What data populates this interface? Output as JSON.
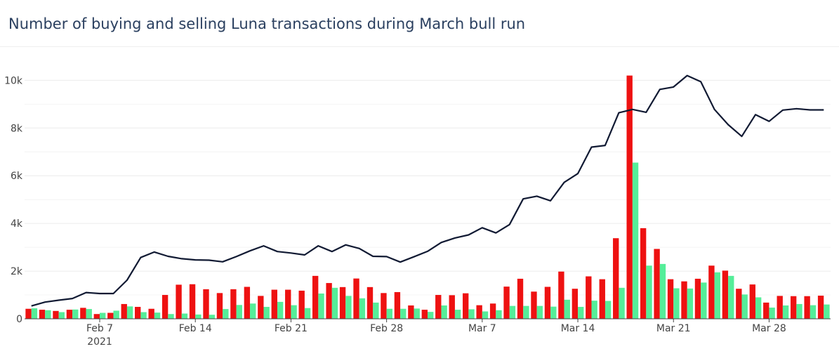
{
  "header": {
    "title": "Number of buying and selling Luna transactions during March bull run"
  },
  "chart_data": {
    "type": "bar",
    "title": "Number of buying and selling Luna transactions during March bull run",
    "xlabel": "",
    "ylabel": "",
    "x_start_date": "2021-02-02",
    "x_ticks": [
      {
        "date": "2021-02-07",
        "label": "Feb 7",
        "sublabel": "2021"
      },
      {
        "date": "2021-02-14",
        "label": "Feb 14",
        "sublabel": ""
      },
      {
        "date": "2021-02-21",
        "label": "Feb 21",
        "sublabel": ""
      },
      {
        "date": "2021-02-28",
        "label": "Feb 28",
        "sublabel": ""
      },
      {
        "date": "2021-03-07",
        "label": "Mar 7",
        "sublabel": ""
      },
      {
        "date": "2021-03-14",
        "label": "Mar 14",
        "sublabel": ""
      },
      {
        "date": "2021-03-21",
        "label": "Mar 21",
        "sublabel": ""
      },
      {
        "date": "2021-03-28",
        "label": "Mar 28",
        "sublabel": ""
      }
    ],
    "y_ticks": [
      {
        "value": 0,
        "label": "0"
      },
      {
        "value": 2000,
        "label": "2k"
      },
      {
        "value": 4000,
        "label": "4k"
      },
      {
        "value": 6000,
        "label": "6k"
      },
      {
        "value": 8000,
        "label": "8k"
      },
      {
        "value": 10000,
        "label": "10k"
      }
    ],
    "ylim": [
      0,
      10600
    ],
    "grid": true,
    "legend": "none",
    "colors": {
      "red": "#ee1111",
      "green": "#55ee99",
      "line": "#111a33"
    },
    "series": [
      {
        "kind": "bar",
        "color_key": "red",
        "values": [
          420,
          380,
          330,
          380,
          460,
          200,
          250,
          620,
          500,
          420,
          1000,
          1430,
          1450,
          1240,
          1080,
          1240,
          1340,
          960,
          1220,
          1220,
          1180,
          1800,
          1500,
          1330,
          1690,
          1330,
          1080,
          1120,
          560,
          380,
          1000,
          990,
          1070,
          570,
          640,
          1350,
          1680,
          1140,
          1340,
          1980,
          1260,
          1780,
          1660,
          3380,
          10200,
          3800,
          2930,
          1660,
          1570,
          1680,
          2230,
          2020,
          1260,
          1440,
          680,
          960,
          950,
          950,
          970
        ]
      },
      {
        "kind": "bar",
        "color_key": "green",
        "values": [
          440,
          360,
          280,
          390,
          410,
          250,
          340,
          520,
          280,
          260,
          200,
          220,
          180,
          170,
          410,
          580,
          640,
          500,
          710,
          570,
          450,
          1060,
          1300,
          960,
          860,
          680,
          420,
          420,
          430,
          290,
          560,
          380,
          400,
          310,
          360,
          540,
          540,
          540,
          510,
          800,
          500,
          760,
          750,
          1300,
          6550,
          2230,
          2300,
          1280,
          1270,
          1520,
          1950,
          1800,
          1020,
          900,
          470,
          560,
          620,
          570,
          600
        ]
      },
      {
        "kind": "line",
        "color_key": "line",
        "values": [
          540,
          700,
          780,
          850,
          1100,
          1060,
          1060,
          1620,
          2570,
          2800,
          2620,
          2520,
          2470,
          2460,
          2390,
          2610,
          2850,
          3060,
          2820,
          2760,
          2680,
          3060,
          2820,
          3100,
          2950,
          2620,
          2610,
          2380,
          2600,
          2830,
          3200,
          3390,
          3520,
          3820,
          3600,
          3950,
          5030,
          5140,
          4950,
          5720,
          6090,
          7200,
          7270,
          8640,
          8780,
          8660,
          9620,
          9720,
          10200,
          9940,
          8780,
          8140,
          7650,
          8560,
          8280,
          8750,
          8810,
          8760,
          8760
        ]
      }
    ]
  }
}
